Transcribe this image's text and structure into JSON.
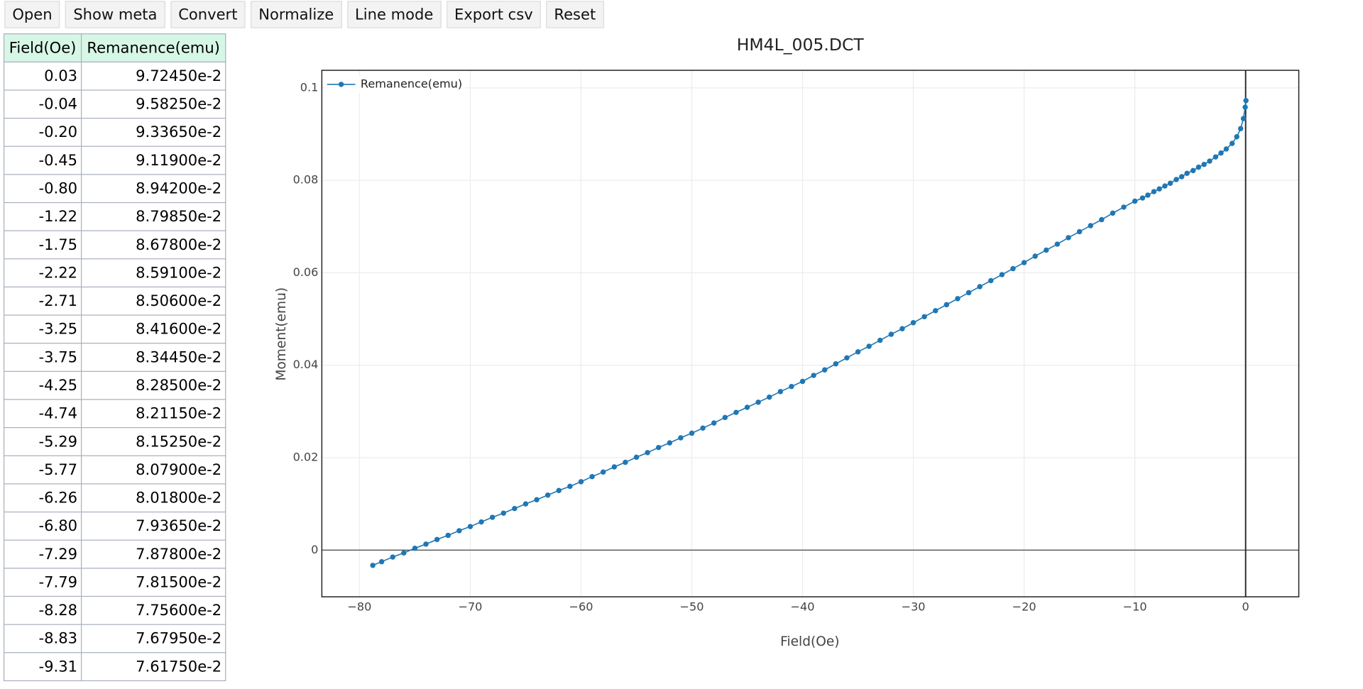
{
  "toolbar": {
    "buttons": [
      "Open",
      "Show meta",
      "Convert",
      "Normalize",
      "Line mode",
      "Export csv",
      "Reset"
    ]
  },
  "table": {
    "columns": [
      "Field(Oe)",
      "Remanence(emu)"
    ],
    "rows": [
      [
        "0.03",
        "9.72450e-2"
      ],
      [
        "-0.04",
        "9.58250e-2"
      ],
      [
        "-0.20",
        "9.33650e-2"
      ],
      [
        "-0.45",
        "9.11900e-2"
      ],
      [
        "-0.80",
        "8.94200e-2"
      ],
      [
        "-1.22",
        "8.79850e-2"
      ],
      [
        "-1.75",
        "8.67800e-2"
      ],
      [
        "-2.22",
        "8.59100e-2"
      ],
      [
        "-2.71",
        "8.50600e-2"
      ],
      [
        "-3.25",
        "8.41600e-2"
      ],
      [
        "-3.75",
        "8.34450e-2"
      ],
      [
        "-4.25",
        "8.28500e-2"
      ],
      [
        "-4.74",
        "8.21150e-2"
      ],
      [
        "-5.29",
        "8.15250e-2"
      ],
      [
        "-5.77",
        "8.07900e-2"
      ],
      [
        "-6.26",
        "8.01800e-2"
      ],
      [
        "-6.80",
        "7.93650e-2"
      ],
      [
        "-7.29",
        "7.87800e-2"
      ],
      [
        "-7.79",
        "7.81500e-2"
      ],
      [
        "-8.28",
        "7.75600e-2"
      ],
      [
        "-8.83",
        "7.67950e-2"
      ],
      [
        "-9.31",
        "7.61750e-2"
      ]
    ]
  },
  "chart_data": {
    "type": "line",
    "title": "HM4L_005.DCT",
    "x_label": "Field(Oe)",
    "y_label": "Moment(emu)",
    "series": [
      {
        "name": "Remanence(emu)",
        "color": "#1f77b4",
        "x": [
          0.03,
          -0.04,
          -0.2,
          -0.45,
          -0.8,
          -1.22,
          -1.75,
          -2.22,
          -2.71,
          -3.25,
          -3.75,
          -4.25,
          -4.74,
          -5.29,
          -5.77,
          -6.26,
          -6.8,
          -7.29,
          -7.79,
          -8.28,
          -8.83,
          -9.31,
          -10,
          -11,
          -12,
          -13,
          -14,
          -15,
          -16,
          -17,
          -18,
          -19,
          -20,
          -21,
          -22,
          -23,
          -24,
          -25,
          -26,
          -27,
          -28,
          -29,
          -30,
          -31,
          -32,
          -33,
          -34,
          -35,
          -36,
          -37,
          -38,
          -39,
          -40,
          -41,
          -42,
          -43,
          -44,
          -45,
          -46,
          -47,
          -48,
          -49,
          -50,
          -51,
          -52,
          -53,
          -54,
          -55,
          -56,
          -57,
          -58,
          -59,
          -60,
          -61,
          -62,
          -63,
          -64,
          -65,
          -66,
          -67,
          -68,
          -69,
          -70,
          -71,
          -72,
          -73,
          -74,
          -75,
          -76,
          -77,
          -78,
          -78.8
        ],
        "values": [
          0.097245,
          0.095825,
          0.093365,
          0.09119,
          0.08942,
          0.087985,
          0.08678,
          0.08591,
          0.08506,
          0.08416,
          0.083445,
          0.08285,
          0.082115,
          0.081525,
          0.08079,
          0.08018,
          0.079365,
          0.07878,
          0.07815,
          0.07756,
          0.076795,
          0.076175,
          0.0755,
          0.0742,
          0.0729,
          0.0715,
          0.0702,
          0.0689,
          0.0676,
          0.0662,
          0.0649,
          0.0636,
          0.0622,
          0.0609,
          0.0596,
          0.0583,
          0.057,
          0.0557,
          0.0544,
          0.0531,
          0.0518,
          0.0505,
          0.0492,
          0.0479,
          0.0467,
          0.0454,
          0.0441,
          0.0429,
          0.0416,
          0.0403,
          0.039,
          0.0378,
          0.0365,
          0.0354,
          0.0343,
          0.0331,
          0.032,
          0.0309,
          0.0298,
          0.0287,
          0.0275,
          0.0264,
          0.0253,
          0.0243,
          0.0232,
          0.0222,
          0.0211,
          0.0201,
          0.019,
          0.018,
          0.0169,
          0.0159,
          0.0148,
          0.0138,
          0.0129,
          0.0119,
          0.0109,
          0.01,
          0.009,
          0.008,
          0.0071,
          0.0061,
          0.0051,
          0.0042,
          0.0032,
          0.0023,
          0.0013,
          0.0004,
          -0.0006,
          -0.0015,
          -0.0025,
          -0.0033
        ]
      }
    ],
    "xlim": [
      -83.4,
      4.8
    ],
    "ylim": [
      -0.0101,
      0.1038
    ],
    "xticks": [
      {
        "value": -80,
        "label": "−80"
      },
      {
        "value": -70,
        "label": "−70"
      },
      {
        "value": -60,
        "label": "−60"
      },
      {
        "value": -50,
        "label": "−50"
      },
      {
        "value": -40,
        "label": "−40"
      },
      {
        "value": -30,
        "label": "−30"
      },
      {
        "value": -20,
        "label": "−20"
      },
      {
        "value": -10,
        "label": "−10"
      },
      0
    ],
    "yticks": [
      0,
      0.02,
      0.04,
      0.06,
      0.08,
      0.1
    ],
    "grid": true,
    "legend": "upper left",
    "markers": true
  }
}
